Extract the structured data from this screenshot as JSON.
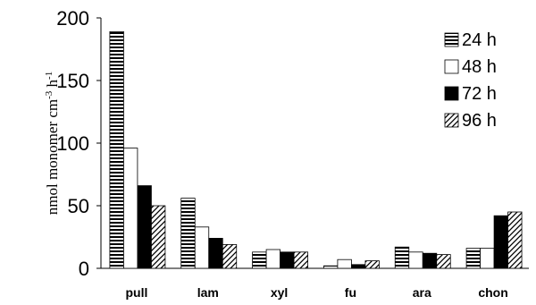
{
  "chart_data": {
    "type": "bar",
    "title": "",
    "xlabel": "",
    "ylabel": "nmol monomer cm",
    "ylabel_sup1": "-3",
    "ylabel_mid": " h",
    "ylabel_sup2": "-1",
    "ylim": [
      0,
      200
    ],
    "yticks": [
      "0",
      "50",
      "100",
      "150",
      "200"
    ],
    "categories": [
      "pull",
      "lam",
      "xyl",
      "fu",
      "ara",
      "chon"
    ],
    "legend_position": "top-right",
    "grid": false,
    "series": [
      {
        "name": "24 h",
        "pattern": "horizontal-stripes",
        "values": [
          189,
          56,
          13,
          2,
          17,
          16
        ]
      },
      {
        "name": "48 h",
        "pattern": "white",
        "values": [
          96,
          33,
          15,
          7,
          13,
          16
        ]
      },
      {
        "name": "72 h",
        "pattern": "black",
        "values": [
          66,
          24,
          13,
          3,
          12,
          42
        ]
      },
      {
        "name": "96 h",
        "pattern": "diagonal-stripes",
        "values": [
          50,
          19,
          13,
          6,
          11,
          45
        ]
      }
    ]
  }
}
